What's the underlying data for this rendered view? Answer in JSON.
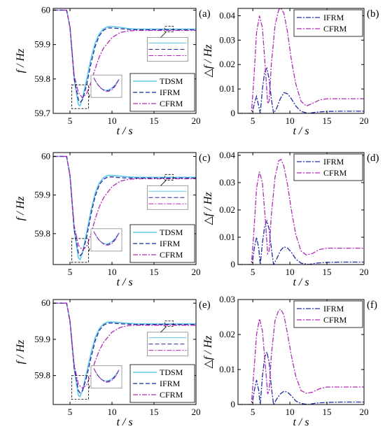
{
  "chart_data": [
    {
      "id": "a",
      "panel_label": "(a)",
      "type": "line",
      "xlabel": "t / s",
      "ylabel": "f / Hz",
      "xlim": [
        3,
        20
      ],
      "ylim": [
        59.7,
        60.005
      ],
      "xticks": [
        5,
        10,
        15,
        20
      ],
      "yticks": [
        59.7,
        59.8,
        59.9,
        60
      ],
      "grid": false,
      "legend_position": "bottom-right",
      "series": [
        {
          "name": "TDSM",
          "color": "#5fc8e8",
          "style": "solid",
          "x": [
            3,
            4.6,
            5.0,
            5.5,
            6.0,
            6.2,
            6.5,
            7.0,
            7.5,
            8.0,
            8.5,
            9.0,
            9.5,
            10.0,
            11,
            12,
            13,
            15,
            20
          ],
          "y": [
            60,
            60,
            59.95,
            59.8,
            59.725,
            59.722,
            59.745,
            59.8,
            59.86,
            59.905,
            59.932,
            59.946,
            59.952,
            59.952,
            59.95,
            59.946,
            59.945,
            59.945,
            59.945
          ]
        },
        {
          "name": "IFRM",
          "color": "#1f2aa0",
          "style": "dashed",
          "x": [
            3,
            4.6,
            5.0,
            5.5,
            6.0,
            6.2,
            6.5,
            7.0,
            7.5,
            8.0,
            8.5,
            9.0,
            9.5,
            10.0,
            11,
            12,
            13,
            15,
            20
          ],
          "y": [
            60,
            60,
            59.95,
            59.8,
            59.74,
            59.732,
            59.74,
            59.785,
            59.845,
            59.895,
            59.926,
            59.942,
            59.948,
            59.948,
            59.946,
            59.944,
            59.943,
            59.943,
            59.943
          ]
        },
        {
          "name": "CFRM",
          "color": "#b02ab8",
          "style": "dashdot",
          "x": [
            3,
            4.6,
            5.0,
            5.5,
            6.0,
            6.5,
            7.0,
            7.5,
            8.0,
            8.5,
            9.0,
            10.0,
            11,
            12,
            13,
            15,
            20
          ],
          "y": [
            60,
            60,
            59.95,
            59.81,
            59.76,
            59.745,
            59.758,
            59.79,
            59.83,
            59.865,
            59.89,
            59.92,
            59.935,
            59.94,
            59.941,
            59.941,
            59.941
          ]
        }
      ]
    },
    {
      "id": "b",
      "panel_label": "(b)",
      "type": "line",
      "xlabel": "t / s",
      "ylabel": "△f / Hz",
      "xlim": [
        3,
        20
      ],
      "ylim": [
        0,
        0.043
      ],
      "xticks": [
        5,
        10,
        15,
        20
      ],
      "yticks": [
        0,
        0.01,
        0.02,
        0.03,
        0.04
      ],
      "grid": false,
      "legend_position": "top-right",
      "series": [
        {
          "name": "IFRM",
          "color": "#1f2aa0",
          "style": "dashdot",
          "x": [
            3,
            4.9,
            5.2,
            5.5,
            5.8,
            6.0,
            6.3,
            6.6,
            6.9,
            7.2,
            7.5,
            7.8,
            8.2,
            8.7,
            9.2,
            9.7,
            10.2,
            10.8,
            11.5,
            12.5,
            13.5,
            15,
            17,
            20
          ],
          "y": [
            0,
            0,
            0.004,
            0.007,
            0.003,
            0,
            0.01,
            0.017,
            0.0185,
            0.014,
            0.006,
            0,
            0.002,
            0.006,
            0.0085,
            0.008,
            0.006,
            0.003,
            0.0008,
            0,
            0.0005,
            0.0008,
            0.0009,
            0.0009
          ]
        },
        {
          "name": "CFRM",
          "color": "#b02ab8",
          "style": "dashdot",
          "x": [
            3,
            4.8,
            5.1,
            5.5,
            5.9,
            6.3,
            6.7,
            7.0,
            7.2,
            7.5,
            8.0,
            8.5,
            8.8,
            9.2,
            9.7,
            10.2,
            10.8,
            11.5,
            12.2,
            13,
            14,
            15,
            17,
            20
          ],
          "y": [
            0,
            0,
            0.012,
            0.033,
            0.04,
            0.035,
            0.018,
            0.004,
            0.005,
            0.02,
            0.036,
            0.0425,
            0.043,
            0.041,
            0.033,
            0.022,
            0.012,
            0.005,
            0.003,
            0.004,
            0.0055,
            0.006,
            0.006,
            0.006
          ]
        }
      ]
    },
    {
      "id": "c",
      "panel_label": "(c)",
      "type": "line",
      "xlabel": "t / s",
      "ylabel": "f / Hz",
      "xlim": [
        3,
        20
      ],
      "ylim": [
        59.72,
        60.01
      ],
      "xticks": [
        5,
        10,
        15,
        20
      ],
      "yticks": [
        59.8,
        59.9,
        60
      ],
      "grid": false,
      "legend_position": "bottom-right",
      "series": [
        {
          "name": "TDSM",
          "color": "#5fc8e8",
          "style": "solid",
          "x": [
            3,
            4.6,
            5.0,
            5.5,
            6.0,
            6.2,
            6.5,
            7.0,
            7.5,
            8.0,
            8.5,
            9.0,
            9.5,
            10.0,
            11,
            12,
            13,
            15,
            20
          ],
          "y": [
            60,
            60,
            59.95,
            59.81,
            59.737,
            59.733,
            59.752,
            59.805,
            59.86,
            59.905,
            59.932,
            59.945,
            59.951,
            59.951,
            59.949,
            59.947,
            59.946,
            59.946,
            59.946
          ]
        },
        {
          "name": "IFRM",
          "color": "#1f2aa0",
          "style": "dashed",
          "x": [
            3,
            4.6,
            5.0,
            5.5,
            6.0,
            6.2,
            6.5,
            7.0,
            7.5,
            8.0,
            8.5,
            9.0,
            9.5,
            10.0,
            11,
            12,
            13,
            15,
            20
          ],
          "y": [
            60,
            60,
            59.95,
            59.81,
            59.75,
            59.743,
            59.75,
            59.793,
            59.85,
            59.897,
            59.927,
            59.941,
            59.947,
            59.947,
            59.945,
            59.944,
            59.944,
            59.944,
            59.944
          ]
        },
        {
          "name": "CFRM",
          "color": "#b02ab8",
          "style": "dashdot",
          "x": [
            3,
            4.6,
            5.0,
            5.5,
            6.0,
            6.5,
            7.0,
            7.5,
            8.0,
            8.5,
            9.0,
            10.0,
            11,
            12,
            13,
            15,
            20
          ],
          "y": [
            60,
            60,
            59.95,
            59.82,
            59.77,
            59.757,
            59.768,
            59.8,
            59.838,
            59.87,
            59.893,
            59.922,
            59.936,
            59.941,
            59.942,
            59.942,
            59.942
          ]
        }
      ]
    },
    {
      "id": "d",
      "panel_label": "(d)",
      "type": "line",
      "xlabel": "t / s",
      "ylabel": "△f / Hz",
      "xlim": [
        3,
        20
      ],
      "ylim": [
        0,
        0.041
      ],
      "xticks": [
        5,
        10,
        15,
        20
      ],
      "yticks": [
        0,
        0.01,
        0.02,
        0.03,
        0.04
      ],
      "grid": false,
      "legend_position": "top-right",
      "series": [
        {
          "name": "IFRM",
          "color": "#1f2aa0",
          "style": "dashdot",
          "x": [
            3,
            4.9,
            5.2,
            5.5,
            5.8,
            6.0,
            6.3,
            6.6,
            6.9,
            7.2,
            7.5,
            7.8,
            8.2,
            8.7,
            9.2,
            9.7,
            10.2,
            10.8,
            11.5,
            12.5,
            13.5,
            15,
            17,
            20
          ],
          "y": [
            0,
            0,
            0.006,
            0.01,
            0.006,
            0,
            0.008,
            0.014,
            0.016,
            0.013,
            0.006,
            0,
            0.002,
            0.005,
            0.0065,
            0.006,
            0.0045,
            0.002,
            0.0005,
            0,
            0.0005,
            0.0008,
            0.0009,
            0.0009
          ]
        },
        {
          "name": "CFRM",
          "color": "#b02ab8",
          "style": "dashdot",
          "x": [
            3,
            4.8,
            5.1,
            5.5,
            5.9,
            6.3,
            6.7,
            7.0,
            7.2,
            7.5,
            8.0,
            8.5,
            8.8,
            9.2,
            9.7,
            10.2,
            10.8,
            11.5,
            12.2,
            13,
            14,
            15,
            17,
            20
          ],
          "y": [
            0,
            0,
            0.01,
            0.028,
            0.034,
            0.03,
            0.016,
            0.004,
            0.005,
            0.018,
            0.032,
            0.038,
            0.0385,
            0.036,
            0.029,
            0.02,
            0.011,
            0.005,
            0.0035,
            0.004,
            0.0055,
            0.006,
            0.006,
            0.006
          ]
        }
      ]
    },
    {
      "id": "e",
      "panel_label": "(e)",
      "type": "line",
      "xlabel": "t / s",
      "ylabel": "f / Hz",
      "xlim": [
        3,
        20
      ],
      "ylim": [
        59.72,
        60.01
      ],
      "xticks": [
        5,
        10,
        15,
        20
      ],
      "yticks": [
        59.8,
        59.9,
        60
      ],
      "grid": false,
      "legend_position": "bottom-right",
      "series": [
        {
          "name": "TDSM",
          "color": "#5fc8e8",
          "style": "solid",
          "x": [
            3,
            4.6,
            5.0,
            5.5,
            6.0,
            6.2,
            6.5,
            7.0,
            7.5,
            8.0,
            8.5,
            9.0,
            9.5,
            10.0,
            11,
            12,
            13,
            15,
            20
          ],
          "y": [
            60,
            60,
            59.95,
            59.82,
            59.745,
            59.742,
            59.76,
            59.81,
            59.862,
            59.905,
            59.93,
            59.943,
            59.948,
            59.948,
            59.946,
            59.944,
            59.943,
            59.943,
            59.943
          ]
        },
        {
          "name": "IFRM",
          "color": "#1f2aa0",
          "style": "dashed",
          "x": [
            3,
            4.6,
            5.0,
            5.5,
            6.0,
            6.2,
            6.5,
            7.0,
            7.5,
            8.0,
            8.5,
            9.0,
            9.5,
            10.0,
            11,
            12,
            13,
            15,
            20
          ],
          "y": [
            60,
            60,
            59.95,
            59.82,
            59.758,
            59.752,
            59.758,
            59.798,
            59.85,
            59.896,
            59.925,
            59.939,
            59.945,
            59.945,
            59.943,
            59.942,
            59.941,
            59.941,
            59.941
          ]
        },
        {
          "name": "CFRM",
          "color": "#b02ab8",
          "style": "dashdot",
          "x": [
            3,
            4.6,
            5.0,
            5.5,
            6.0,
            6.5,
            7.0,
            7.5,
            8.0,
            8.5,
            9.0,
            10.0,
            11,
            12,
            13,
            15,
            20
          ],
          "y": [
            60,
            60,
            59.95,
            59.83,
            59.775,
            59.765,
            59.775,
            59.805,
            59.84,
            59.87,
            59.892,
            59.92,
            59.933,
            59.938,
            59.939,
            59.939,
            59.939
          ]
        }
      ]
    },
    {
      "id": "f",
      "panel_label": "(f)",
      "type": "line",
      "xlabel": "t / s",
      "ylabel": "△f / Hz",
      "xlim": [
        3,
        20
      ],
      "ylim": [
        0,
        0.03
      ],
      "xticks": [
        5,
        10,
        15,
        20
      ],
      "yticks": [
        0,
        0.01,
        0.02,
        0.03
      ],
      "grid": false,
      "legend_position": "top-right",
      "series": [
        {
          "name": "IFRM",
          "color": "#1f2aa0",
          "style": "dashdot",
          "x": [
            3,
            4.9,
            5.2,
            5.5,
            5.8,
            6.0,
            6.3,
            6.6,
            6.9,
            7.2,
            7.5,
            7.8,
            8.2,
            8.7,
            9.2,
            9.7,
            10.2,
            10.8,
            11.5,
            12.5,
            13.5,
            15,
            17,
            20
          ],
          "y": [
            0,
            0,
            0.004,
            0.007,
            0.004,
            0,
            0.008,
            0.0135,
            0.015,
            0.012,
            0.005,
            0,
            0.0015,
            0.003,
            0.0038,
            0.0035,
            0.0025,
            0.001,
            0.0003,
            0,
            0.0004,
            0.0006,
            0.0007,
            0.0007
          ]
        },
        {
          "name": "CFRM",
          "color": "#b02ab8",
          "style": "dashdot",
          "x": [
            3,
            4.8,
            5.1,
            5.5,
            5.9,
            6.3,
            6.7,
            7.0,
            7.2,
            7.5,
            8.0,
            8.5,
            8.8,
            9.2,
            9.7,
            10.2,
            10.8,
            11.5,
            12.2,
            13,
            14,
            15,
            17,
            20
          ],
          "y": [
            0,
            0,
            0.008,
            0.02,
            0.0245,
            0.021,
            0.011,
            0.003,
            0.004,
            0.014,
            0.024,
            0.027,
            0.0272,
            0.0255,
            0.02,
            0.014,
            0.008,
            0.004,
            0.0032,
            0.0035,
            0.0045,
            0.005,
            0.005,
            0.005
          ]
        }
      ]
    }
  ]
}
